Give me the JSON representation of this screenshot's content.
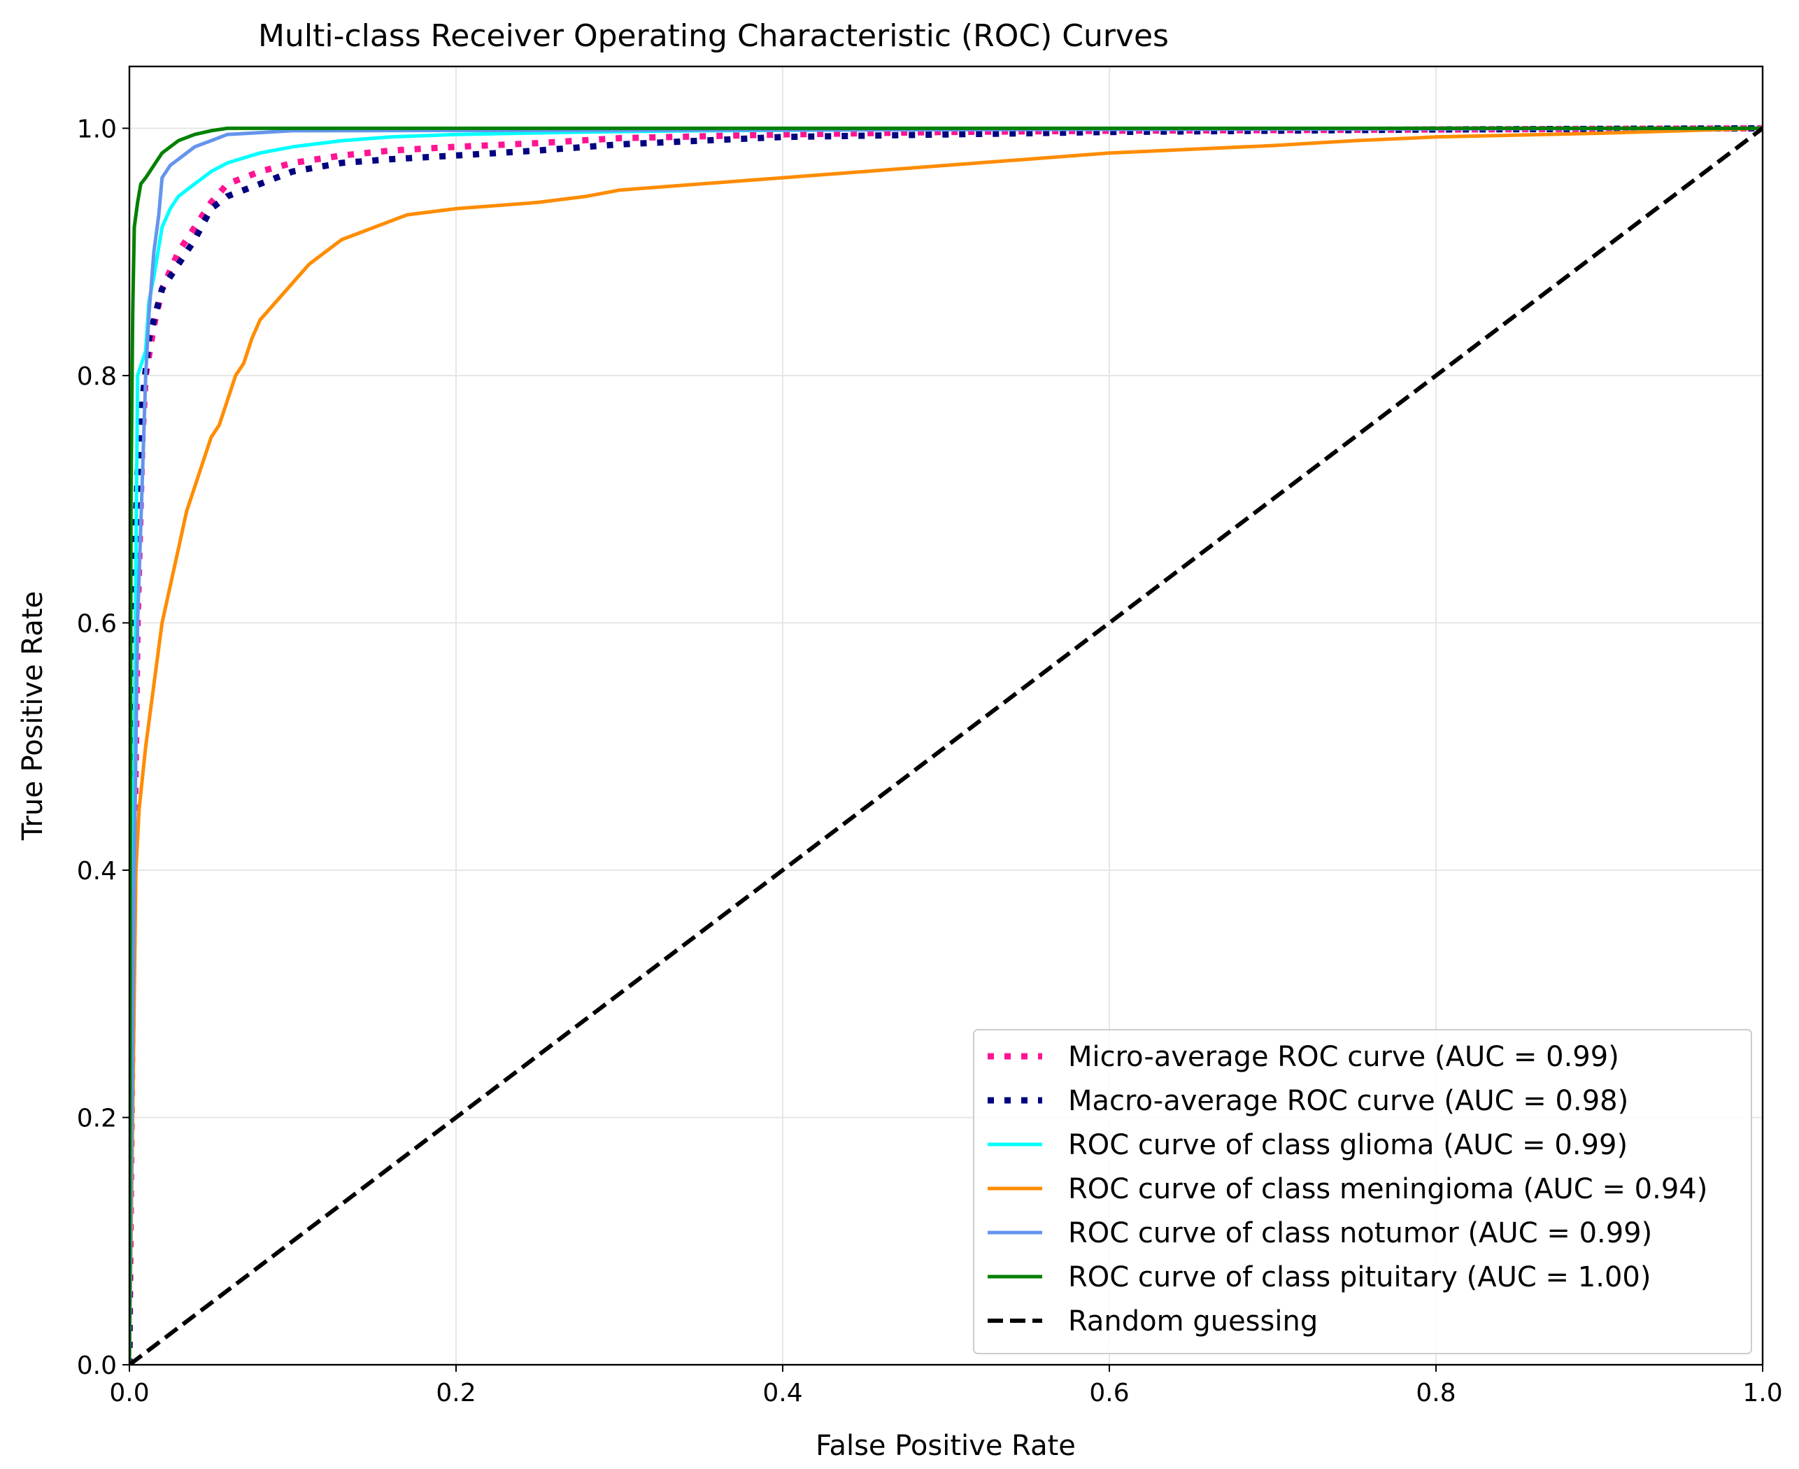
{
  "chart_data": {
    "type": "line",
    "title": "Multi-class Receiver Operating Characteristic (ROC) Curves",
    "xlabel": "False Positive Rate",
    "ylabel": "True Positive Rate",
    "xlim": [
      0.0,
      1.0
    ],
    "ylim": [
      0.0,
      1.05
    ],
    "x_ticks": [
      0.0,
      0.2,
      0.4,
      0.6,
      0.8,
      1.0
    ],
    "y_ticks": [
      0.0,
      0.2,
      0.4,
      0.6,
      0.8,
      1.0
    ],
    "x_tick_labels": [
      "0.0",
      "0.2",
      "0.4",
      "0.6",
      "0.8",
      "1.0"
    ],
    "y_tick_labels": [
      "0.0",
      "0.2",
      "0.4",
      "0.6",
      "0.8",
      "1.0"
    ],
    "grid": true,
    "legend_position": "lower-right",
    "series": [
      {
        "name": "Micro-average ROC curve (AUC = 0.99)",
        "color": "#ff1493",
        "style": "dotted",
        "points": [
          [
            0,
            0
          ],
          [
            0.002,
            0.3
          ],
          [
            0.005,
            0.6
          ],
          [
            0.008,
            0.75
          ],
          [
            0.01,
            0.8
          ],
          [
            0.015,
            0.84
          ],
          [
            0.02,
            0.87
          ],
          [
            0.03,
            0.9
          ],
          [
            0.04,
            0.92
          ],
          [
            0.05,
            0.94
          ],
          [
            0.06,
            0.955
          ],
          [
            0.08,
            0.965
          ],
          [
            0.1,
            0.972
          ],
          [
            0.13,
            0.978
          ],
          [
            0.16,
            0.982
          ],
          [
            0.2,
            0.985
          ],
          [
            0.25,
            0.988
          ],
          [
            0.3,
            0.992
          ],
          [
            0.4,
            0.995
          ],
          [
            0.5,
            0.997
          ],
          [
            0.6,
            0.998
          ],
          [
            0.8,
            0.999
          ],
          [
            1,
            1
          ]
        ]
      },
      {
        "name": "Macro-average ROC curve (AUC = 0.98)",
        "color": "#000080",
        "style": "dotted",
        "points": [
          [
            0,
            0
          ],
          [
            0.001,
            0.55
          ],
          [
            0.003,
            0.65
          ],
          [
            0.005,
            0.72
          ],
          [
            0.008,
            0.78
          ],
          [
            0.012,
            0.83
          ],
          [
            0.02,
            0.87
          ],
          [
            0.03,
            0.89
          ],
          [
            0.04,
            0.91
          ],
          [
            0.05,
            0.935
          ],
          [
            0.06,
            0.945
          ],
          [
            0.08,
            0.955
          ],
          [
            0.1,
            0.965
          ],
          [
            0.13,
            0.972
          ],
          [
            0.16,
            0.975
          ],
          [
            0.2,
            0.978
          ],
          [
            0.25,
            0.982
          ],
          [
            0.3,
            0.987
          ],
          [
            0.35,
            0.99
          ],
          [
            0.4,
            0.993
          ],
          [
            0.5,
            0.995
          ],
          [
            0.6,
            0.997
          ],
          [
            0.8,
            0.999
          ],
          [
            1,
            1
          ]
        ]
      },
      {
        "name": "ROC curve of class glioma (AUC = 0.99)",
        "color": "#00ffff",
        "style": "solid",
        "points": [
          [
            0,
            0
          ],
          [
            0.003,
            0.5
          ],
          [
            0.005,
            0.8
          ],
          [
            0.01,
            0.82
          ],
          [
            0.012,
            0.86
          ],
          [
            0.015,
            0.88
          ],
          [
            0.02,
            0.92
          ],
          [
            0.025,
            0.935
          ],
          [
            0.03,
            0.945
          ],
          [
            0.04,
            0.955
          ],
          [
            0.05,
            0.965
          ],
          [
            0.06,
            0.972
          ],
          [
            0.08,
            0.98
          ],
          [
            0.1,
            0.985
          ],
          [
            0.13,
            0.99
          ],
          [
            0.16,
            0.993
          ],
          [
            0.2,
            0.995
          ],
          [
            0.28,
            0.997
          ],
          [
            0.35,
            0.998
          ],
          [
            0.5,
            0.999
          ],
          [
            1,
            1
          ]
        ]
      },
      {
        "name": "ROC curve of class meningioma (AUC = 0.94)",
        "color": "#ff8c00",
        "style": "solid",
        "points": [
          [
            0,
            0
          ],
          [
            0.004,
            0.4
          ],
          [
            0.006,
            0.45
          ],
          [
            0.01,
            0.5
          ],
          [
            0.015,
            0.55
          ],
          [
            0.02,
            0.6
          ],
          [
            0.025,
            0.63
          ],
          [
            0.03,
            0.66
          ],
          [
            0.035,
            0.69
          ],
          [
            0.04,
            0.71
          ],
          [
            0.045,
            0.73
          ],
          [
            0.05,
            0.75
          ],
          [
            0.055,
            0.76
          ],
          [
            0.06,
            0.78
          ],
          [
            0.065,
            0.8
          ],
          [
            0.07,
            0.81
          ],
          [
            0.075,
            0.83
          ],
          [
            0.08,
            0.845
          ],
          [
            0.09,
            0.86
          ],
          [
            0.1,
            0.875
          ],
          [
            0.11,
            0.89
          ],
          [
            0.12,
            0.9
          ],
          [
            0.13,
            0.91
          ],
          [
            0.15,
            0.92
          ],
          [
            0.17,
            0.93
          ],
          [
            0.2,
            0.935
          ],
          [
            0.25,
            0.94
          ],
          [
            0.28,
            0.945
          ],
          [
            0.3,
            0.95
          ],
          [
            0.35,
            0.955
          ],
          [
            0.4,
            0.96
          ],
          [
            0.45,
            0.965
          ],
          [
            0.5,
            0.97
          ],
          [
            0.55,
            0.975
          ],
          [
            0.6,
            0.98
          ],
          [
            0.65,
            0.983
          ],
          [
            0.7,
            0.986
          ],
          [
            0.75,
            0.99
          ],
          [
            0.8,
            0.993
          ],
          [
            0.9,
            0.996
          ],
          [
            1,
            1
          ]
        ]
      },
      {
        "name": "ROC curve of class notumor (AUC = 0.99)",
        "color": "#6495ed",
        "style": "solid",
        "points": [
          [
            0,
            0
          ],
          [
            0.003,
            0.4
          ],
          [
            0.005,
            0.6
          ],
          [
            0.008,
            0.72
          ],
          [
            0.01,
            0.8
          ],
          [
            0.012,
            0.85
          ],
          [
            0.015,
            0.9
          ],
          [
            0.018,
            0.93
          ],
          [
            0.02,
            0.96
          ],
          [
            0.025,
            0.97
          ],
          [
            0.03,
            0.975
          ],
          [
            0.04,
            0.985
          ],
          [
            0.05,
            0.99
          ],
          [
            0.06,
            0.995
          ],
          [
            0.1,
            0.998
          ],
          [
            1,
            1
          ]
        ]
      },
      {
        "name": "ROC curve of class pituitary (AUC = 1.00)",
        "color": "#008000",
        "style": "solid",
        "points": [
          [
            0,
            0
          ],
          [
            0.001,
            0.7
          ],
          [
            0.002,
            0.85
          ],
          [
            0.003,
            0.92
          ],
          [
            0.005,
            0.94
          ],
          [
            0.007,
            0.955
          ],
          [
            0.01,
            0.96
          ],
          [
            0.015,
            0.97
          ],
          [
            0.02,
            0.98
          ],
          [
            0.03,
            0.99
          ],
          [
            0.04,
            0.995
          ],
          [
            0.05,
            0.998
          ],
          [
            0.06,
            1
          ],
          [
            1,
            1
          ]
        ]
      },
      {
        "name": "Random guessing",
        "color": "#000000",
        "style": "dashed",
        "points": [
          [
            0,
            0
          ],
          [
            1,
            1
          ]
        ]
      }
    ]
  }
}
